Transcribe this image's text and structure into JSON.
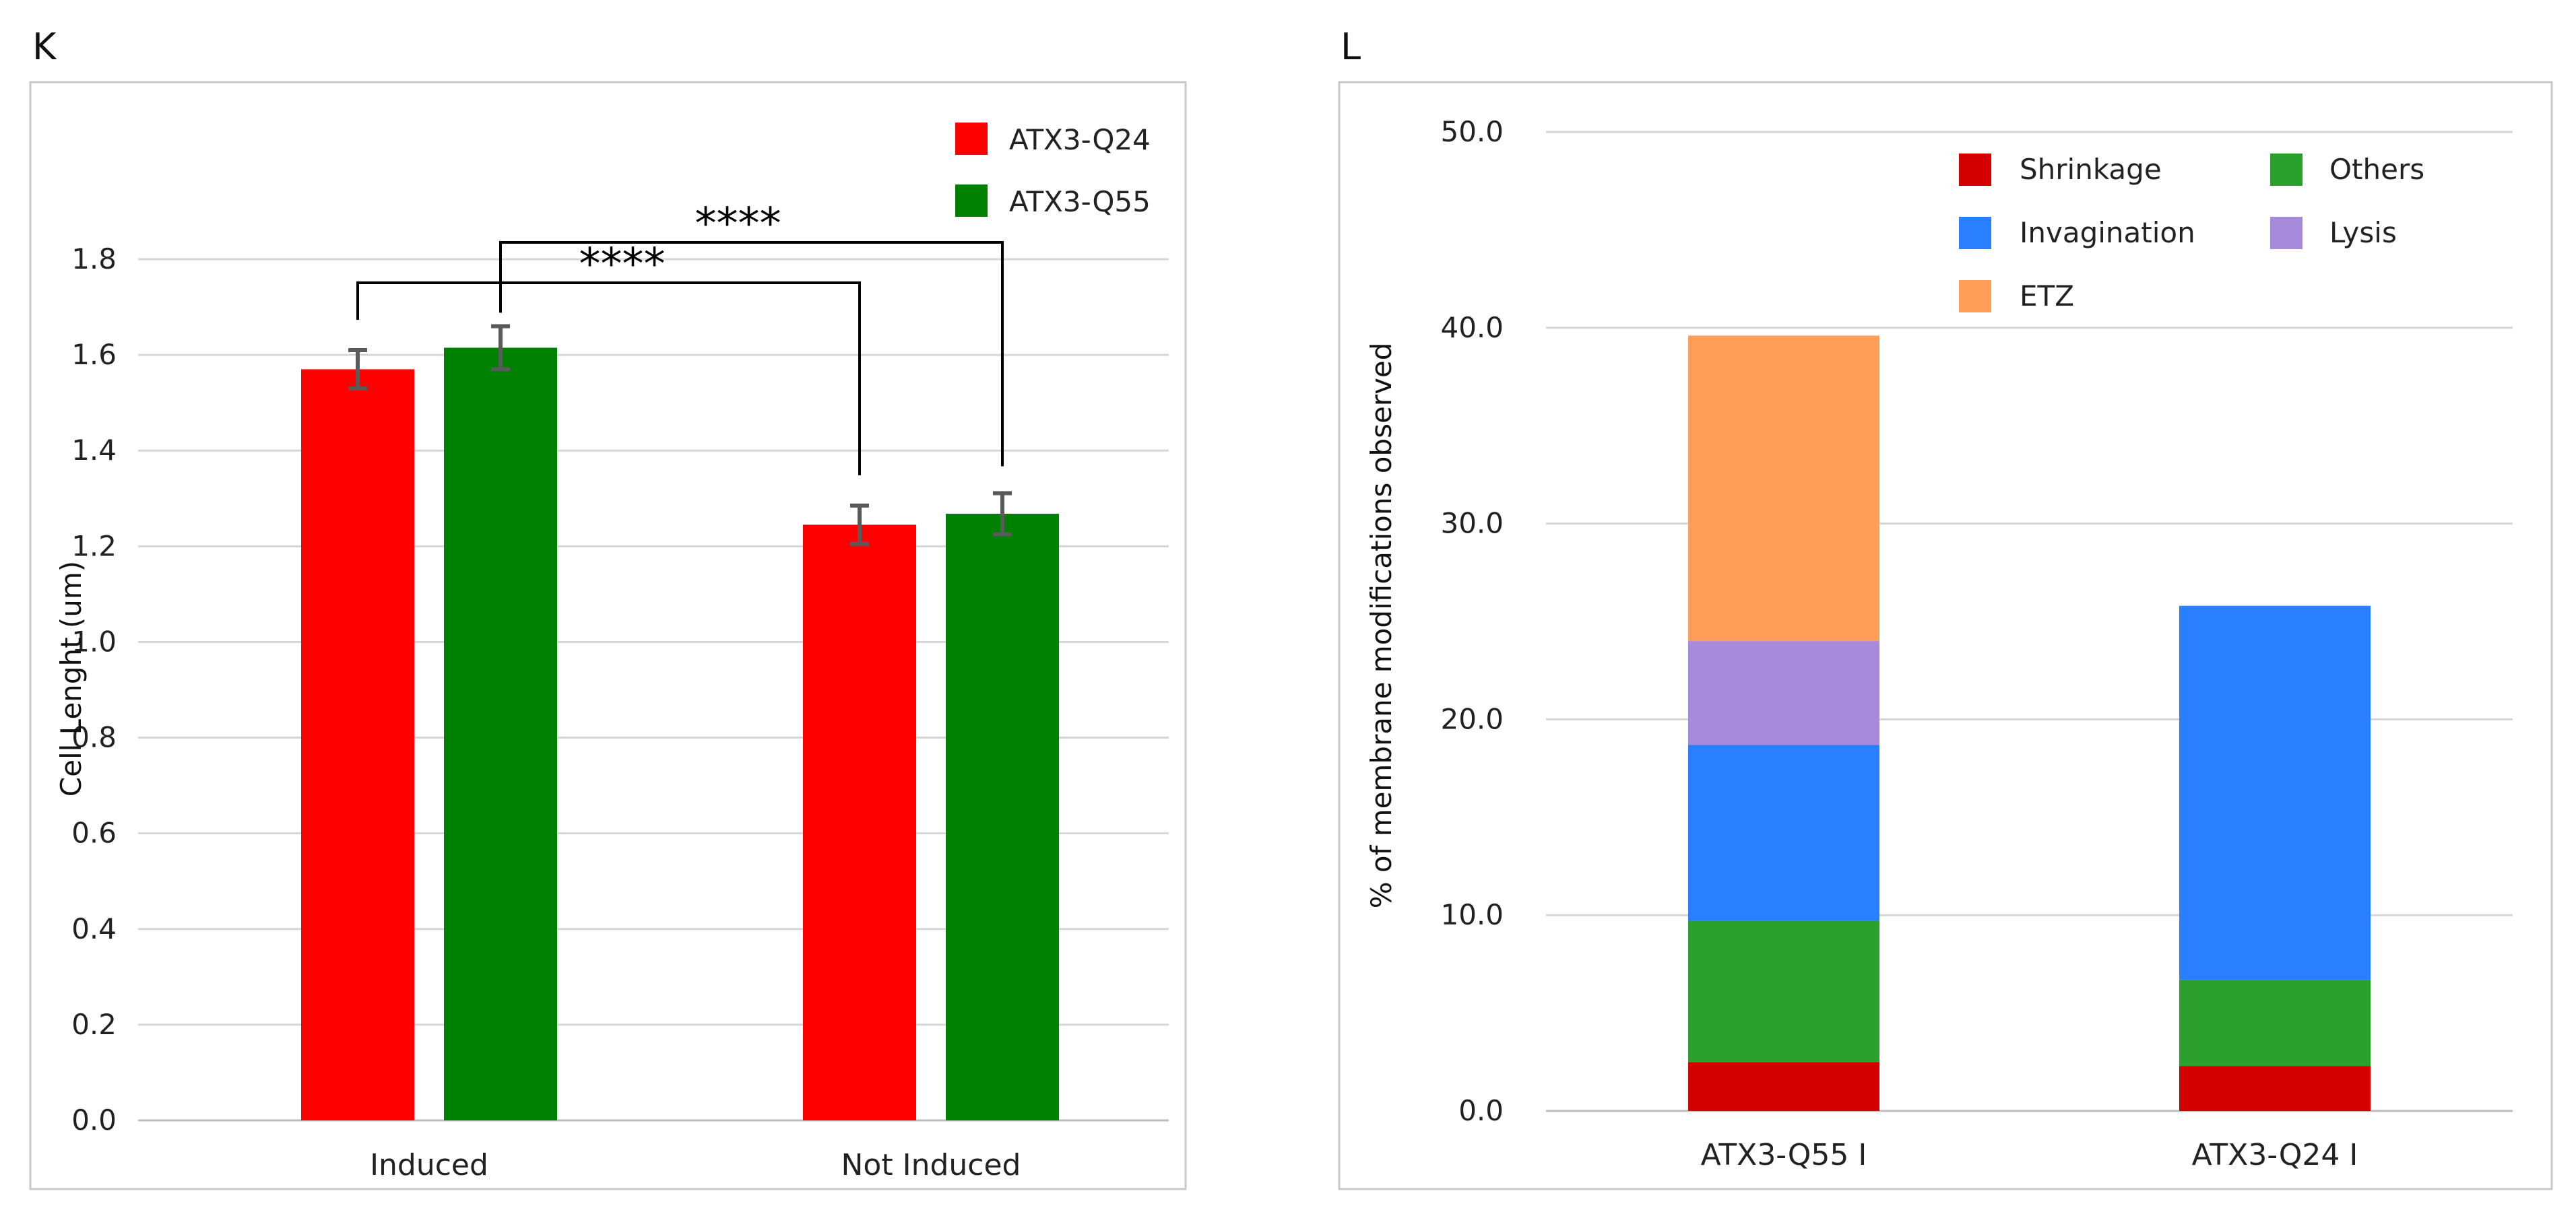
{
  "chart_data": [
    {
      "type": "bar",
      "panel_label": "K",
      "title": "",
      "xlabel": "",
      "ylabel": "Cell Lenght (um)",
      "ylim": [
        0,
        1.8
      ],
      "yticks": [
        "0.0",
        "0.2",
        "0.4",
        "0.6",
        "0.8",
        "1.0",
        "1.2",
        "1.4",
        "1.6",
        "1.8"
      ],
      "grid": true,
      "legend_position": "top-right",
      "categories": [
        "Induced",
        "Not Induced"
      ],
      "series": [
        {
          "name": "ATX3-Q24",
          "color": "#ff0000",
          "values": [
            1.57,
            1.245
          ],
          "errors": [
            0.04,
            0.04
          ]
        },
        {
          "name": "ATX3-Q55",
          "color": "#008000",
          "values": [
            1.615,
            1.268
          ],
          "errors": [
            0.045,
            0.043
          ]
        }
      ],
      "significance": [
        {
          "label": "****",
          "from": "ATX3-Q24 Induced",
          "to": "ATX3-Q24 Not Induced"
        },
        {
          "label": "****",
          "from": "ATX3-Q55 Induced",
          "to": "ATX3-Q55 Not Induced"
        }
      ]
    },
    {
      "type": "bar",
      "stacked": true,
      "panel_label": "L",
      "title": "",
      "xlabel": "",
      "ylabel": "% of membrane modifications observed",
      "ylim": [
        0,
        50
      ],
      "yticks": [
        "0.0",
        "10.0",
        "20.0",
        "30.0",
        "40.0",
        "50.0"
      ],
      "grid": true,
      "legend_position": "top-right",
      "categories": [
        "ATX3-Q55 I",
        "ATX3-Q24 I"
      ],
      "series": [
        {
          "name": "Shrinkage",
          "color": "#d40000",
          "values": [
            2.5,
            2.3
          ]
        },
        {
          "name": "Others",
          "color": "#2ca02c",
          "values": [
            7.2,
            4.4
          ]
        },
        {
          "name": "Invagination",
          "color": "#2a7fff",
          "values": [
            9.0,
            19.1
          ]
        },
        {
          "name": "Lysis",
          "color": "#a78ad9",
          "values": [
            5.3,
            0
          ]
        },
        {
          "name": "ETZ",
          "color": "#ff9e58",
          "values": [
            15.6,
            0
          ]
        }
      ],
      "legend_order": [
        "Shrinkage",
        "Others",
        "Invagination",
        "Lysis",
        "ETZ"
      ]
    }
  ]
}
